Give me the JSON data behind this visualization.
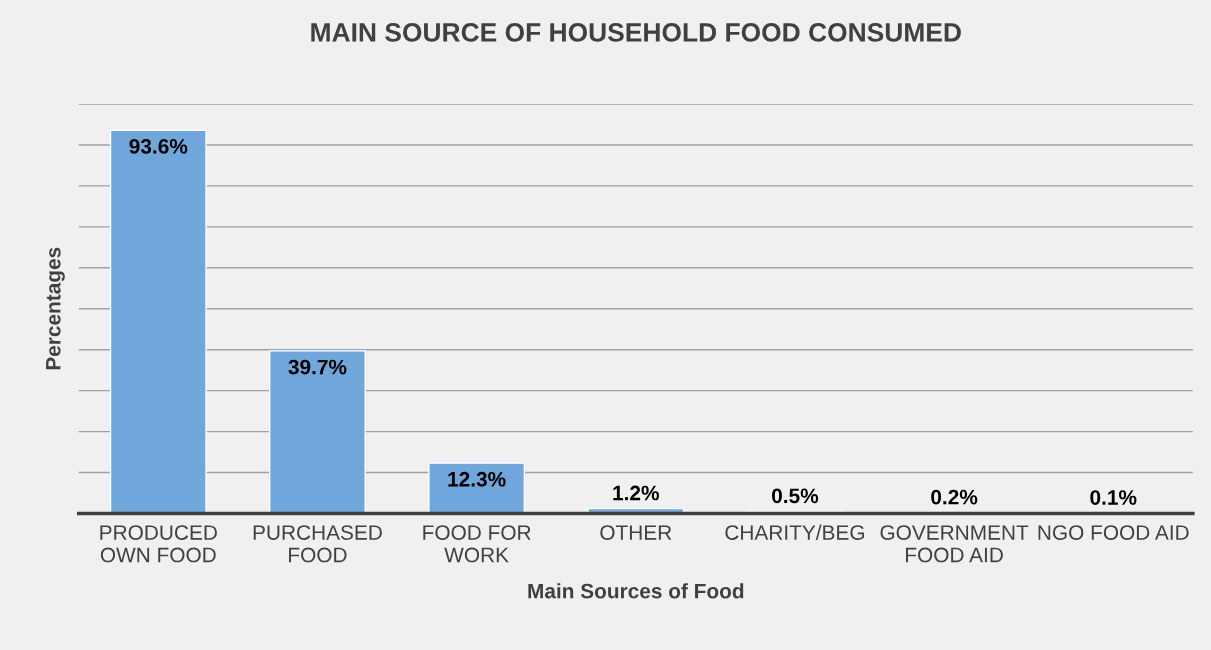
{
  "chart_data": {
    "type": "bar",
    "title": "MAIN SOURCE OF HOUSEHOLD FOOD CONSUMED",
    "xlabel": "Main Sources of Food",
    "ylabel": "Percentages",
    "categories": [
      "PRODUCED\nOWN FOOD",
      "PURCHASED\nFOOD",
      "FOOD FOR\nWORK",
      "OTHER",
      "CHARITY/BEG",
      "GOVERNMENT\nFOOD AID",
      "NGO FOOD AID"
    ],
    "values": [
      93.6,
      39.7,
      12.3,
      1.2,
      0.5,
      0.2,
      0.1
    ],
    "value_labels": [
      "93.6%",
      "39.7%",
      "12.3%",
      "1.2%",
      "0.5%",
      "0.2%",
      "0.1%"
    ],
    "color": "#6fa6dc",
    "ylim": [
      0,
      100
    ],
    "yticks": [
      {
        "value": 0,
        "label": null
      },
      {
        "value": 10,
        "label": null
      },
      {
        "value": 20,
        "label": null
      },
      {
        "value": 30,
        "label": null
      },
      {
        "value": 40,
        "label": null
      },
      {
        "value": 50,
        "label": null
      },
      {
        "value": 60,
        "label": null
      },
      {
        "value": 70,
        "label": null
      },
      {
        "value": 80,
        "label": null
      },
      {
        "value": 90,
        "label": null
      },
      {
        "value": 100,
        "label": null
      }
    ],
    "grid": "y",
    "tick_labels": "x"
  }
}
